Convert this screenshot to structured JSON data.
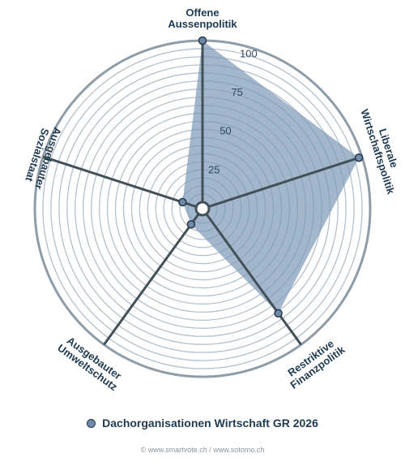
{
  "chart_data": {
    "type": "radar",
    "axes": [
      [
        "Offene",
        "Aussenpolitik"
      ],
      [
        "Liberale",
        "Wirtschaftspolitik"
      ],
      [
        "Restriktive",
        "Finanzpolitik"
      ],
      [
        "Ausgebauter",
        "Umweltschutz"
      ],
      [
        "Ausgebauter",
        "Sozialstaat"
      ]
    ],
    "series": [
      {
        "name": "Dachorganisationen Wirtschaft GR 2026",
        "values": [
          100,
          98,
          76,
          8,
          9
        ]
      }
    ],
    "range": [
      0,
      100
    ],
    "ring_labels": [
      "25",
      "50",
      "75",
      "100"
    ],
    "ring_values": [
      25,
      50,
      75,
      100
    ],
    "ring_count": 20,
    "grid": true,
    "legend_position": "bottom-center",
    "colors": {
      "fill": "#7e9ab8",
      "point": "#6f89a6",
      "point_stroke": "#24384b",
      "spoke": "#435058",
      "grid": "#b4c0ca",
      "outer_ring": "#8e9ca7",
      "label": "#1f3a50"
    }
  },
  "legend": {
    "label": "Dachorganisationen Wirtschaft GR 2026"
  },
  "footer": {
    "credit": "© www.smartvote.ch / www.sotomo.ch"
  }
}
